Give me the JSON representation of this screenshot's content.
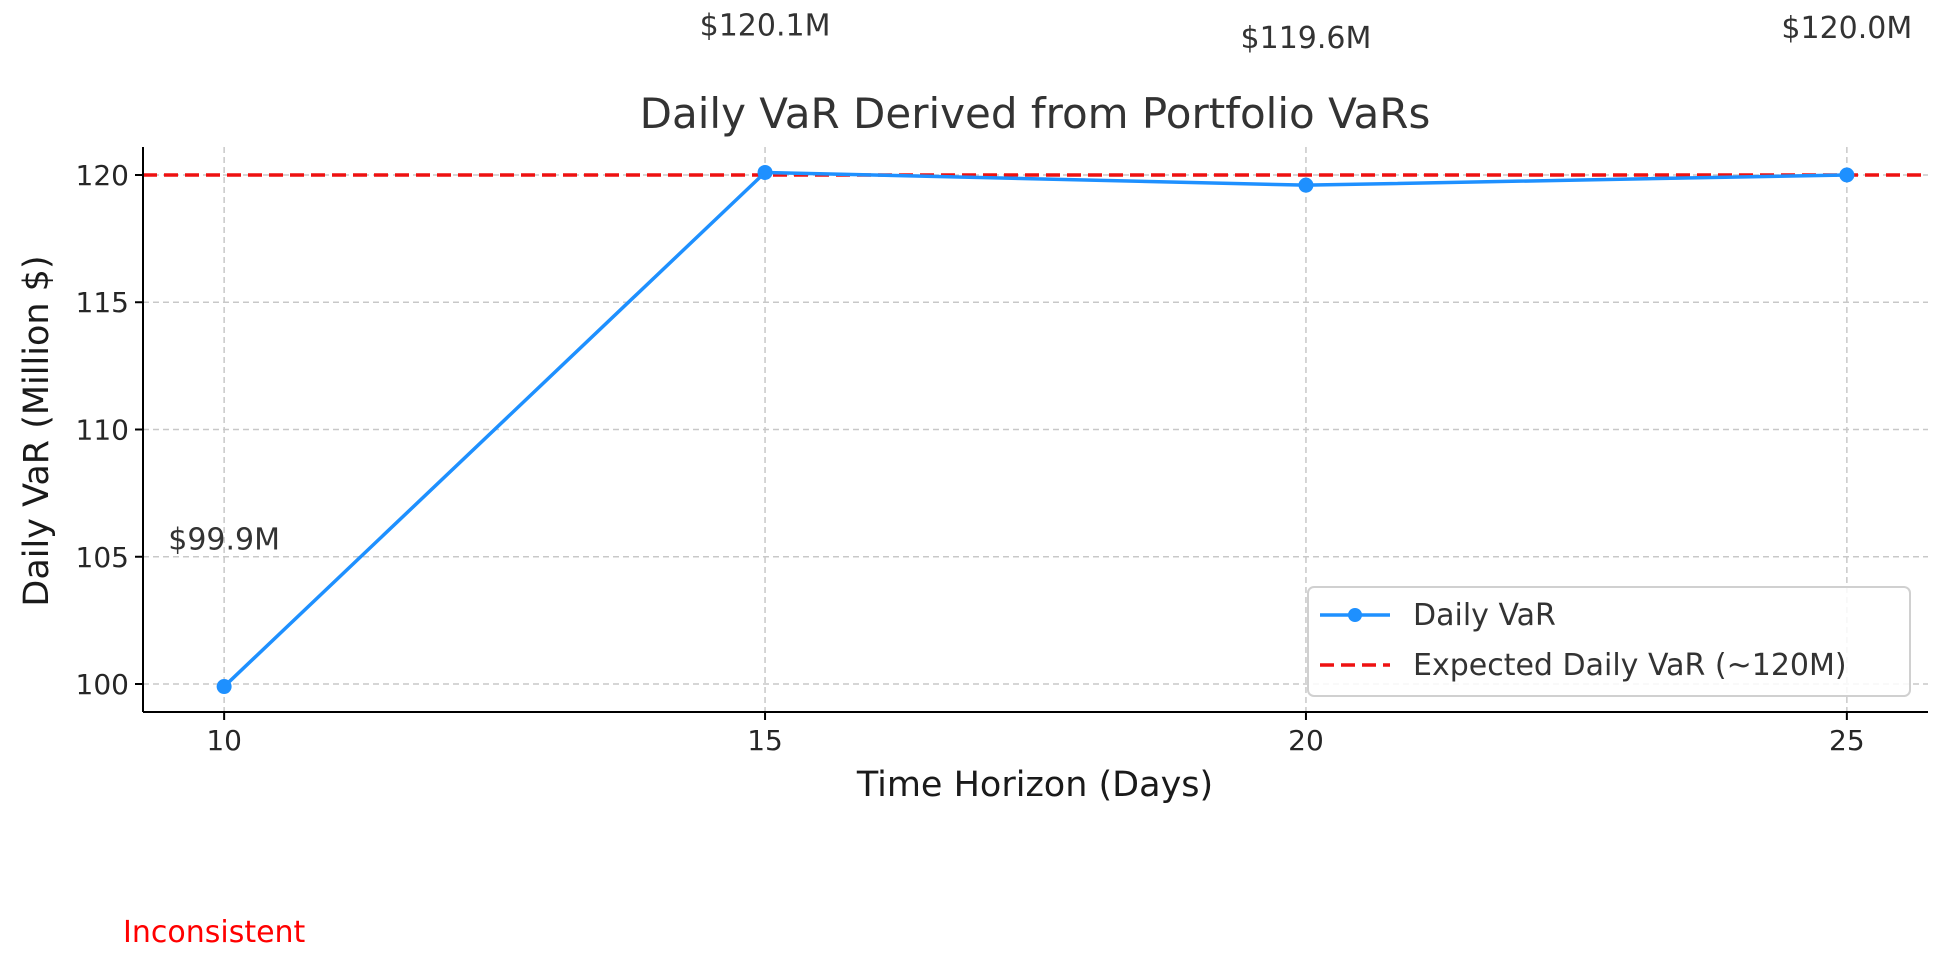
{
  "chart_data": {
    "type": "line",
    "title": "Daily VaR Derived from Portfolio VaRs",
    "xlabel": "Time Horizon (Days)",
    "ylabel": "Daily VaR (Million $)",
    "x": [
      10,
      15,
      20,
      25
    ],
    "xticks": [
      10,
      15,
      20,
      25
    ],
    "yticks": [
      100,
      105,
      110,
      115,
      120
    ],
    "xlim": [
      9.25,
      25.75
    ],
    "ylim": [
      98.9,
      121.1
    ],
    "grid": true,
    "legend_position": "lower-right",
    "series": [
      {
        "name": "Daily VaR",
        "values": [
          99.9,
          120.1,
          119.6,
          120.0
        ],
        "color": "#1E90FF",
        "marker": "circle",
        "data_labels": [
          "$99.9M",
          "$120.1M",
          "$119.6M",
          "$120.0M"
        ]
      }
    ],
    "reference_lines": [
      {
        "name": "Expected Daily VaR (~120M)",
        "y": 120,
        "color": "#EE1111",
        "style": "dashed"
      }
    ]
  },
  "annotation": {
    "text": "Inconsistent",
    "color": "#FF0000"
  }
}
